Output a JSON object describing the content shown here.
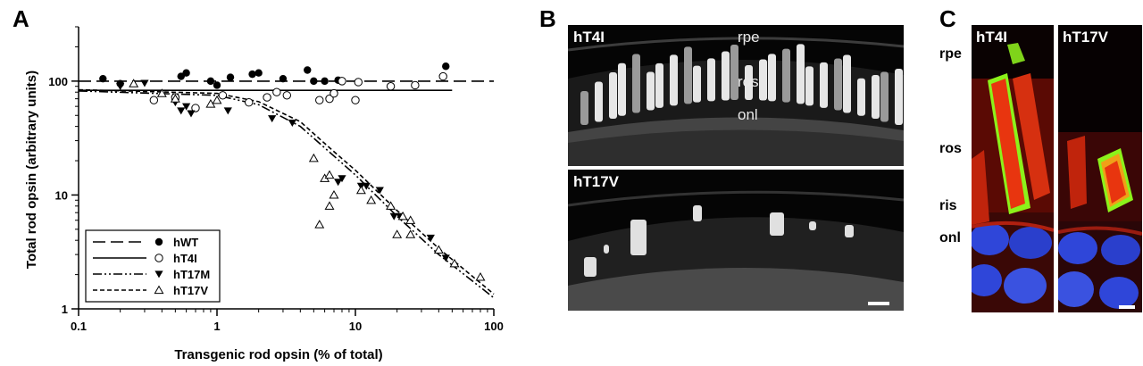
{
  "panels": {
    "a": "A",
    "b": "B",
    "c": "C"
  },
  "chart_data": {
    "type": "scatter",
    "xlabel": "Transgenic rod opsin (% of total)",
    "ylabel": "Total rod opsin (arbitrary units)",
    "xscale": "log",
    "yscale": "log",
    "xlim": [
      0.1,
      100
    ],
    "ylim": [
      1,
      300
    ],
    "xticks": [
      {
        "v": 0.1,
        "label": "0.1"
      },
      {
        "v": 1,
        "label": "1"
      },
      {
        "v": 10,
        "label": "10"
      },
      {
        "v": 100,
        "label": "100"
      }
    ],
    "yticks": [
      {
        "v": 1,
        "label": "1"
      },
      {
        "v": 10,
        "label": "10"
      },
      {
        "v": 100,
        "label": "100"
      }
    ],
    "legend_position": "bottom-left",
    "series": [
      {
        "name": "hWT",
        "marker": "circle-filled",
        "line": "long-dash",
        "points": [
          [
            0.15,
            105
          ],
          [
            0.2,
            95
          ],
          [
            0.55,
            110
          ],
          [
            0.6,
            118
          ],
          [
            0.9,
            100
          ],
          [
            1.0,
            92
          ],
          [
            1.25,
            108
          ],
          [
            1.8,
            115
          ],
          [
            2.0,
            118
          ],
          [
            3.0,
            105
          ],
          [
            4.5,
            125
          ],
          [
            5.0,
            100
          ],
          [
            6.0,
            100
          ],
          [
            7.5,
            102
          ],
          [
            45,
            135
          ]
        ],
        "curve": [
          [
            0.1,
            100
          ],
          [
            100,
            100
          ]
        ]
      },
      {
        "name": "hT4I",
        "marker": "circle-open",
        "line": "solid",
        "points": [
          [
            0.35,
            68
          ],
          [
            0.5,
            72
          ],
          [
            0.7,
            58
          ],
          [
            1.1,
            75
          ],
          [
            1.7,
            65
          ],
          [
            2.3,
            72
          ],
          [
            2.7,
            80
          ],
          [
            3.2,
            75
          ],
          [
            5.5,
            68
          ],
          [
            6.5,
            70
          ],
          [
            7.0,
            78
          ],
          [
            8.0,
            100
          ],
          [
            10,
            68
          ],
          [
            10.5,
            98
          ],
          [
            18,
            90
          ],
          [
            27,
            92
          ],
          [
            43,
            110
          ]
        ],
        "curve": [
          [
            0.1,
            83
          ],
          [
            50,
            83
          ]
        ]
      },
      {
        "name": "hT17M",
        "marker": "triangle-down-filled",
        "line": "dash-dot-dot",
        "points": [
          [
            0.2,
            90
          ],
          [
            0.3,
            96
          ],
          [
            0.5,
            65
          ],
          [
            0.55,
            55
          ],
          [
            0.6,
            60
          ],
          [
            0.65,
            52
          ],
          [
            1.2,
            55
          ],
          [
            2.5,
            47
          ],
          [
            3.5,
            43
          ],
          [
            7.5,
            13
          ],
          [
            8.0,
            14
          ],
          [
            11,
            12
          ],
          [
            12,
            12
          ],
          [
            15,
            11
          ],
          [
            19,
            6.5
          ],
          [
            21,
            6.5
          ],
          [
            35,
            4.2
          ],
          [
            45,
            2.8
          ]
        ],
        "curve": [
          [
            0.1,
            82
          ],
          [
            1,
            75
          ],
          [
            2,
            62
          ],
          [
            4,
            40
          ],
          [
            7,
            22
          ],
          [
            10,
            15
          ],
          [
            20,
            6.5
          ],
          [
            40,
            3
          ],
          [
            100,
            1.25
          ]
        ]
      },
      {
        "name": "hT17V",
        "marker": "triangle-up-open",
        "line": "short-dash",
        "points": [
          [
            0.25,
            95
          ],
          [
            0.4,
            78
          ],
          [
            0.5,
            70
          ],
          [
            0.9,
            63
          ],
          [
            1.0,
            68
          ],
          [
            5.0,
            21
          ],
          [
            6.0,
            14
          ],
          [
            6.5,
            15
          ],
          [
            6.5,
            8
          ],
          [
            7.0,
            10
          ],
          [
            5.5,
            5.5
          ],
          [
            11,
            11
          ],
          [
            13,
            9
          ],
          [
            18,
            8
          ],
          [
            20,
            4.5
          ],
          [
            22,
            6.5
          ],
          [
            25,
            6
          ],
          [
            25,
            4.5
          ],
          [
            40,
            3.3
          ],
          [
            52,
            2.5
          ],
          [
            80,
            1.9
          ]
        ],
        "curve": [
          [
            0.1,
            84
          ],
          [
            1,
            78
          ],
          [
            2,
            66
          ],
          [
            4,
            44
          ],
          [
            7,
            24
          ],
          [
            10,
            16.5
          ],
          [
            20,
            7.3
          ],
          [
            40,
            3.4
          ],
          [
            100,
            1.35
          ]
        ]
      }
    ]
  },
  "panel_b": {
    "top_label": "hT4I",
    "bottom_label": "hT17V",
    "layer_labels": [
      "rpe",
      "ros",
      "onl"
    ]
  },
  "panel_c": {
    "left_label": "hT4I",
    "right_label": "hT17V",
    "side_labels": [
      "rpe",
      "ros",
      "ris",
      "onl"
    ]
  },
  "colors": {
    "ink": "#000000",
    "micro_bg": "#000000",
    "opsin_red": "#e8350f",
    "opsin_green": "#8cf21a",
    "nuclei_blue": "#2f46d9"
  }
}
